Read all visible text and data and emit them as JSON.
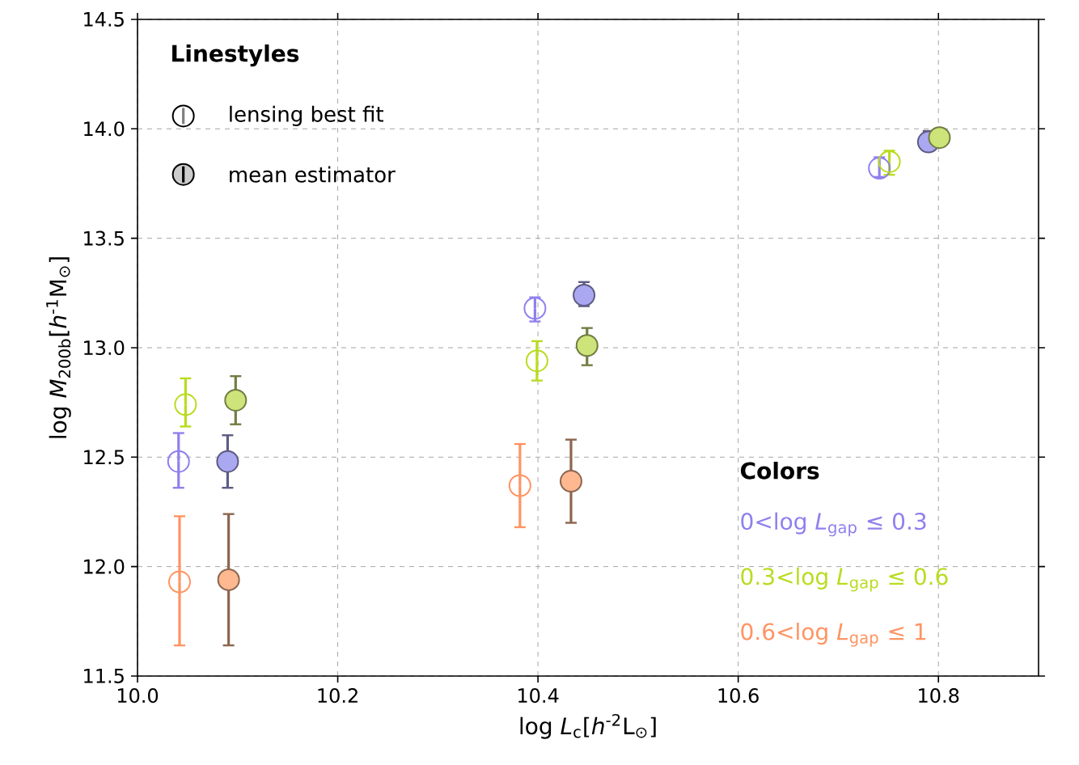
{
  "chart_data": {
    "type": "scatter",
    "xlabel": "log *L*$_{c}$[*h*$^{-2}$L$_{⊙}$]",
    "ylabel": "log *M*$_{200b}$[*h*$^{-1}$M$_{⊙}$]",
    "xlim": [
      10.0,
      10.9
    ],
    "ylim": [
      11.5,
      14.5
    ],
    "xticks": [
      {
        "value": 10.0,
        "label": "10.0"
      },
      10.2,
      10.4,
      10.6,
      10.8
    ],
    "yticks": [
      11.5,
      {
        "value": 12.0,
        "label": "12.0"
      },
      12.5,
      {
        "value": 13.0,
        "label": "13.0"
      },
      13.5,
      {
        "value": 14.0,
        "label": "14.0"
      },
      14.5
    ],
    "grid": true,
    "annotations": [
      "Linestyles",
      "lensing best fit",
      "mean estimator",
      "Colors"
    ],
    "series": [
      {
        "name": "0<log *L*$_{gap}$ ≤ 0.3",
        "color": "#8f80ee",
        "marker": "open circle",
        "x": [
          10.041,
          10.397,
          10.741
        ],
        "values": [
          12.48,
          13.18,
          13.82
        ],
        "errors": [
          [
            12.36,
            12.61
          ],
          [
            13.12,
            13.23
          ],
          [
            13.78,
            13.87
          ]
        ]
      },
      {
        "color": "#aaa8f0",
        "marker": "circle",
        "x": [
          10.09,
          10.446,
          10.79
        ],
        "values": [
          12.48,
          13.24,
          13.94
        ],
        "errors": [
          [
            12.36,
            12.6
          ],
          [
            13.19,
            13.3
          ],
          [
            13.9,
            13.99
          ]
        ]
      },
      {
        "name": "0.3<log *L*$_{gap}$ ≤ 0.6",
        "color": "#b8dc20",
        "marker": "open circle",
        "x": [
          10.048,
          10.399,
          10.751
        ],
        "values": [
          12.74,
          12.94,
          13.85
        ],
        "errors": [
          [
            12.64,
            12.86
          ],
          [
            12.85,
            13.03
          ],
          [
            13.79,
            13.9
          ]
        ]
      },
      {
        "color": "#cde47a",
        "marker": "circle",
        "x": [
          10.098,
          10.449,
          10.801
        ],
        "values": [
          12.76,
          13.01,
          13.96
        ],
        "errors": [
          [
            12.65,
            12.87
          ],
          [
            12.92,
            13.09
          ],
          [
            13.92,
            14.0
          ]
        ]
      },
      {
        "name": "0.6<log *L*$_{gap}$ ≤ 1",
        "color": "#ff9462",
        "marker": "open circle",
        "x": [
          10.042,
          10.382
        ],
        "values": [
          11.93,
          12.37
        ],
        "errors": [
          [
            11.64,
            12.23
          ],
          [
            12.18,
            12.56
          ]
        ]
      },
      {
        "color": "#ffb890",
        "marker": "circle",
        "x": [
          10.091,
          10.433
        ],
        "values": [
          11.94,
          12.39
        ],
        "errors": [
          [
            11.64,
            12.24
          ],
          [
            12.2,
            12.58
          ]
        ]
      }
    ]
  }
}
